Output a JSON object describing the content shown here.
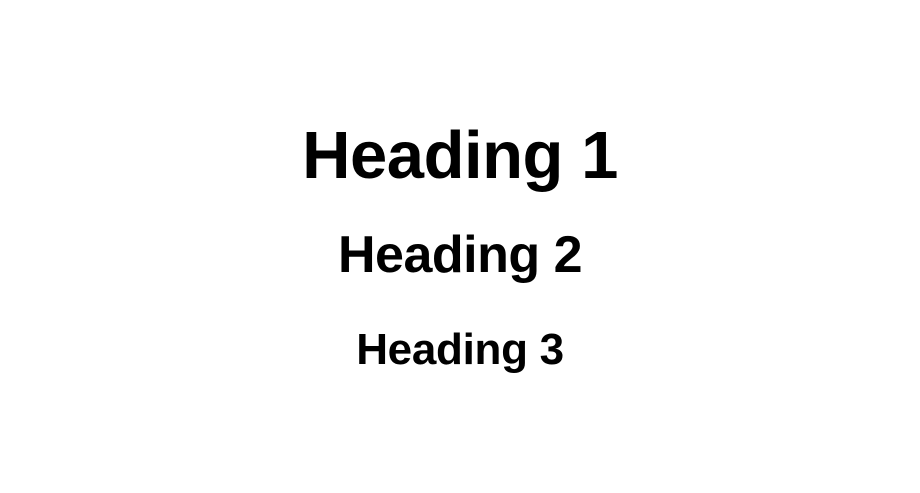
{
  "headings": {
    "h1": "Heading 1",
    "h2": "Heading 2",
    "h3": "Heading 3"
  },
  "colors": {
    "background": "#ffffff",
    "text": "#000000"
  }
}
